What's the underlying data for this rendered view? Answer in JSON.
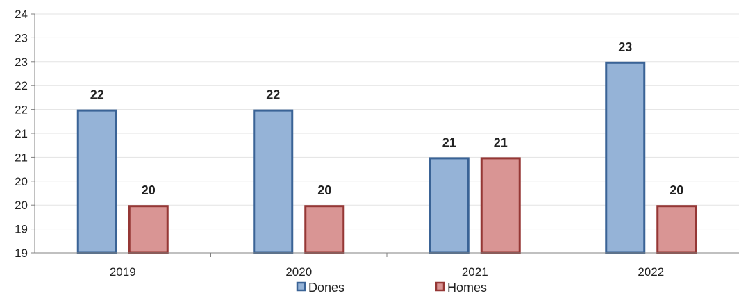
{
  "chart_data": {
    "type": "bar",
    "categories": [
      "2019",
      "2020",
      "2021",
      "2022"
    ],
    "series": [
      {
        "name": "Dones",
        "values": [
          22,
          22,
          21,
          23
        ],
        "labels": [
          "22",
          "22",
          "21",
          "23"
        ],
        "fill": "#95B3D7",
        "stroke": "#3A6396"
      },
      {
        "name": "Homes",
        "values": [
          20,
          20,
          21,
          20
        ],
        "labels": [
          "20",
          "20",
          "21",
          "20"
        ],
        "fill": "#D99594",
        "stroke": "#953735"
      }
    ],
    "ylim": [
      19,
      24
    ],
    "ytick_labels": [
      "19",
      "19",
      "20",
      "20",
      "21",
      "21",
      "22",
      "22",
      "23",
      "23",
      "24"
    ],
    "grid": true,
    "legend": "bottom",
    "title": "",
    "xlabel": "",
    "ylabel": ""
  }
}
